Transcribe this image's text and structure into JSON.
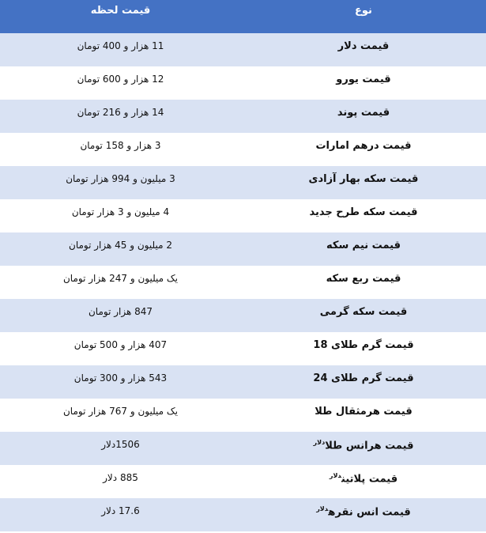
{
  "header": {
    "type": "نوع",
    "price": "قیمت لحظه"
  },
  "rows": [
    {
      "name": "قیمت دلار",
      "sup": "",
      "price": "11 هزار و 400 تومان"
    },
    {
      "name": "قیمت یورو",
      "sup": "",
      "price": "12 هزار و 600 تومان"
    },
    {
      "name": "قیمت پوند",
      "sup": "",
      "price": "14 هزار و 216 تومان"
    },
    {
      "name": "قیمت درهم امارات",
      "sup": "",
      "price": "3 هزار و 158 تومان"
    },
    {
      "name": "قیمت سکه بهار آزادی",
      "sup": "",
      "price": "3 میلیون و 994 هزار تومان"
    },
    {
      "name": "قیمت سکه طرح جدید",
      "sup": "",
      "price": "4 میلیون و 3 هزار تومان"
    },
    {
      "name": "قیمت نیم سکه",
      "sup": "",
      "price": "2 میلیون و 45 هزار تومان"
    },
    {
      "name": "قیمت ربع سکه",
      "sup": "",
      "price": "یک میلیون و 247 هزار تومان"
    },
    {
      "name": "قیمت سکه گرمی",
      "sup": "",
      "price": "847 هزار تومان"
    },
    {
      "name": "قیمت گرم طلای 18",
      "sup": "",
      "price": "407 هزار و 500 تومان"
    },
    {
      "name": "قیمت گرم طلای 24",
      "sup": "",
      "price": "543 هزار و 300 تومان"
    },
    {
      "name": "قیمت هرمثقال طلا",
      "sup": "",
      "price": "یک میلیون و 767 هزار تومان"
    },
    {
      "name": "قیمت هرانس طلا",
      "sup": "دلار",
      "price": "1506دلار"
    },
    {
      "name": "قیمت پلاتین",
      "sup": "دلار",
      "price": "885 دلار"
    },
    {
      "name": "قیمت انس نقره",
      "sup": "دلار",
      "price": "17.6 دلار"
    }
  ],
  "colors": {
    "header": "#4472C4",
    "band": "#D9E2F3"
  }
}
